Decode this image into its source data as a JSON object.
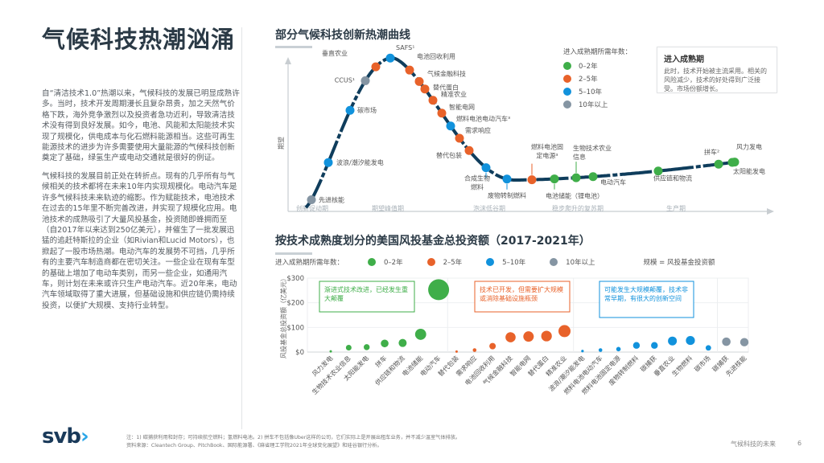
{
  "page": {
    "title": "气候科技热潮汹涌",
    "paragraphs": [
      "自“清洁技术1.0”热潮以来，气候科技的发展已明显成熟许多。当时，技术开发周期漫长且复杂昂贵，加之天然气价格下跌，海外竞争激烈以及投资者急功近利，导致清洁技术没有得到良好发展。如今，电池、风能和太阳能技术实现了规模化，供电成本与化石燃料能源相当。这些可再生能源技术的进步为许多需要使用大量能源的气候科技创新奠定了基础，绿氢生产或电动交通就是很好的例证。",
      "气候科技的发展目前正处在转折点。现有的几乎所有与气候相关的技术都将在未来10年内实现规模化。电动汽车是许多气候科技未来轨迹的缩影。作为赋能技术，电池技术在过去的15年里不断完善改进，并实现了规模化应用。电池技术的成熟吸引了大量风投基金，投资随即蜂拥而至（自2017年以来达到250亿美元），并催生了一批发展迅猛的追赶特斯拉的企业（如Rivian和Lucid Motors），也掀起了一股市场热潮。电动汽车的发展势不可挡，几乎所有的主要汽车制造商都在密切关注。一些企业在现有车型的基础上增加了电动车类别，而另一些企业，如通用汽车，则计划在未来或许只生产电动汽车。近20年来，电动汽车领域取得了重大进展，但基础设施和供应链仍需持续投资，以便扩大规模、支持行业转型。"
    ],
    "footer": {
      "logo": "svb",
      "logo_chevron": "›",
      "note_line1": "注：1) 碳捕获利用和封存；可持续航空燃料；氢燃料电池。2) 拼车不包括像Uber这样的公司，它们实际上是开展出租车业务，并不减少温室气体排放。",
      "note_line2": "资料来源：Cleantech Group、PitchBook、国际能源署、《麻省理工学院2021年全球变化展望》和硅谷银行分析。",
      "report_name": "气候科技的未来",
      "page_number": "6"
    }
  },
  "colors": {
    "green": "#3fae49",
    "orange": "#e8622a",
    "blue": "#1192dc",
    "gray": "#8595a3",
    "curve": "#0f3d5c"
  },
  "legend": {
    "title": "进入成熟期所需年数：",
    "items": [
      {
        "label": "0–2年",
        "key": "green"
      },
      {
        "label": "2–5年",
        "key": "orange"
      },
      {
        "label": "5–10年",
        "key": "blue"
      },
      {
        "label": "10年以上",
        "key": "gray"
      }
    ]
  },
  "maturity_box": {
    "title": "进入成熟期",
    "text": "此时，技术开始被主流采用。相关的风险减少，技术的好处得到广泛接受。市场份额增长。"
  },
  "bubble_legend": {
    "scale_note": "规模 = 风投基金投资额"
  },
  "chart_data": [
    {
      "type": "line",
      "title": "部分气候科技创新热潮曲线",
      "ylabel": "期望",
      "xlabel": "",
      "phases": [
        "创新促动期",
        "期望峰值期",
        "泡沫低谷期",
        "稳步爬升的复苏期",
        "生产期"
      ],
      "points": [
        {
          "label": "先进核能",
          "color": "gray",
          "t": 0.03
        },
        {
          "label": "波浪/潮汐能发电",
          "color": "blue",
          "t": 0.08
        },
        {
          "label": "碳市场",
          "color": "blue",
          "t": 0.13
        },
        {
          "label": "CCUS¹",
          "color": "gray",
          "t": 0.165
        },
        {
          "label": "垂直农业",
          "color": "orange",
          "t": 0.185
        },
        {
          "label": "SAFS¹",
          "color": "blue",
          "t": 0.22
        },
        {
          "label": "电池回收利用",
          "color": "orange",
          "t": 0.265
        },
        {
          "label": "气候金融科技",
          "color": "orange",
          "t": 0.285
        },
        {
          "label": "替代蛋白",
          "color": "orange",
          "t": 0.295
        },
        {
          "label": "精准农业",
          "color": "orange",
          "t": 0.315
        },
        {
          "label": "智能电网",
          "color": "orange",
          "t": 0.325
        },
        {
          "label": "燃料电池电动汽车³",
          "color": "blue",
          "t": 0.335
        },
        {
          "label": "需求响应",
          "color": "orange",
          "t": 0.345
        },
        {
          "label": "替代包装",
          "color": "orange",
          "t": 0.36
        },
        {
          "label": "合成生物燃料",
          "color": "blue",
          "t": 0.385
        },
        {
          "label": "废物转制燃料",
          "color": "blue",
          "t": 0.41
        },
        {
          "label": "燃料电池固定电源³",
          "color": "orange",
          "t": 0.455
        },
        {
          "label": "电池储能（锂电池）",
          "color": "green",
          "t": 0.485
        },
        {
          "label": "生物技术农业信息",
          "color": "green",
          "t": 0.51
        },
        {
          "label": "电动汽车",
          "color": "green",
          "t": 0.535
        },
        {
          "label": "供应链和物流",
          "color": "green",
          "t": 0.67
        },
        {
          "label": "拼车²",
          "color": "green",
          "t": 0.87
        },
        {
          "label": "太阳能发电",
          "color": "green",
          "t": 0.9
        },
        {
          "label": "风力发电",
          "color": "green",
          "t": 0.91
        }
      ]
    },
    {
      "type": "scatter",
      "title": "按技术成熟度划分的美国风投基金总投资额（2017-2021年）",
      "ylabel": "风投基金总投资额（亿美元）",
      "legend_title": "进入成熟期所需年数：",
      "ylim": [
        0,
        300
      ],
      "yticks": [
        "$0",
        "$100",
        "$200",
        "$300"
      ],
      "groups": [
        {
          "key": "green",
          "note": "渐进式技术改进，已经发生重大颠覆"
        },
        {
          "key": "orange",
          "note": "技术已开发，但需要扩大规模或消除基础设施瓶颈"
        },
        {
          "key": "blue",
          "note": "可能发生大规模颠覆，技术非常早期，有很大的创新空间"
        }
      ],
      "categories": [
        "风力发电",
        "生物技术农业信息",
        "太阳能发电",
        "拼车",
        "供应链和物流",
        "电池储能",
        "电动汽车",
        "替代包装",
        "需求响应",
        "电池回收利用",
        "气候金融科技",
        "智能电网",
        "替代蛋白",
        "精准农业",
        "波浪/潮汐能发电",
        "燃料电池电动汽车",
        "燃料电池固定电源",
        "废物转制燃料",
        "碳捕获",
        "垂直农业",
        "生物燃料",
        "碳市场",
        "碳捕获",
        "先进核能"
      ],
      "values": [
        3,
        18,
        20,
        35,
        37,
        72,
        253,
        2,
        8,
        24,
        60,
        63,
        65,
        85,
        4,
        8,
        12,
        27,
        27,
        45,
        47,
        17,
        42,
        40
      ],
      "colors": [
        "green",
        "green",
        "green",
        "green",
        "green",
        "green",
        "green",
        "orange",
        "orange",
        "orange",
        "orange",
        "orange",
        "orange",
        "orange",
        "blue",
        "blue",
        "blue",
        "blue",
        "blue",
        "blue",
        "blue",
        "blue",
        "gray",
        "gray"
      ]
    }
  ]
}
